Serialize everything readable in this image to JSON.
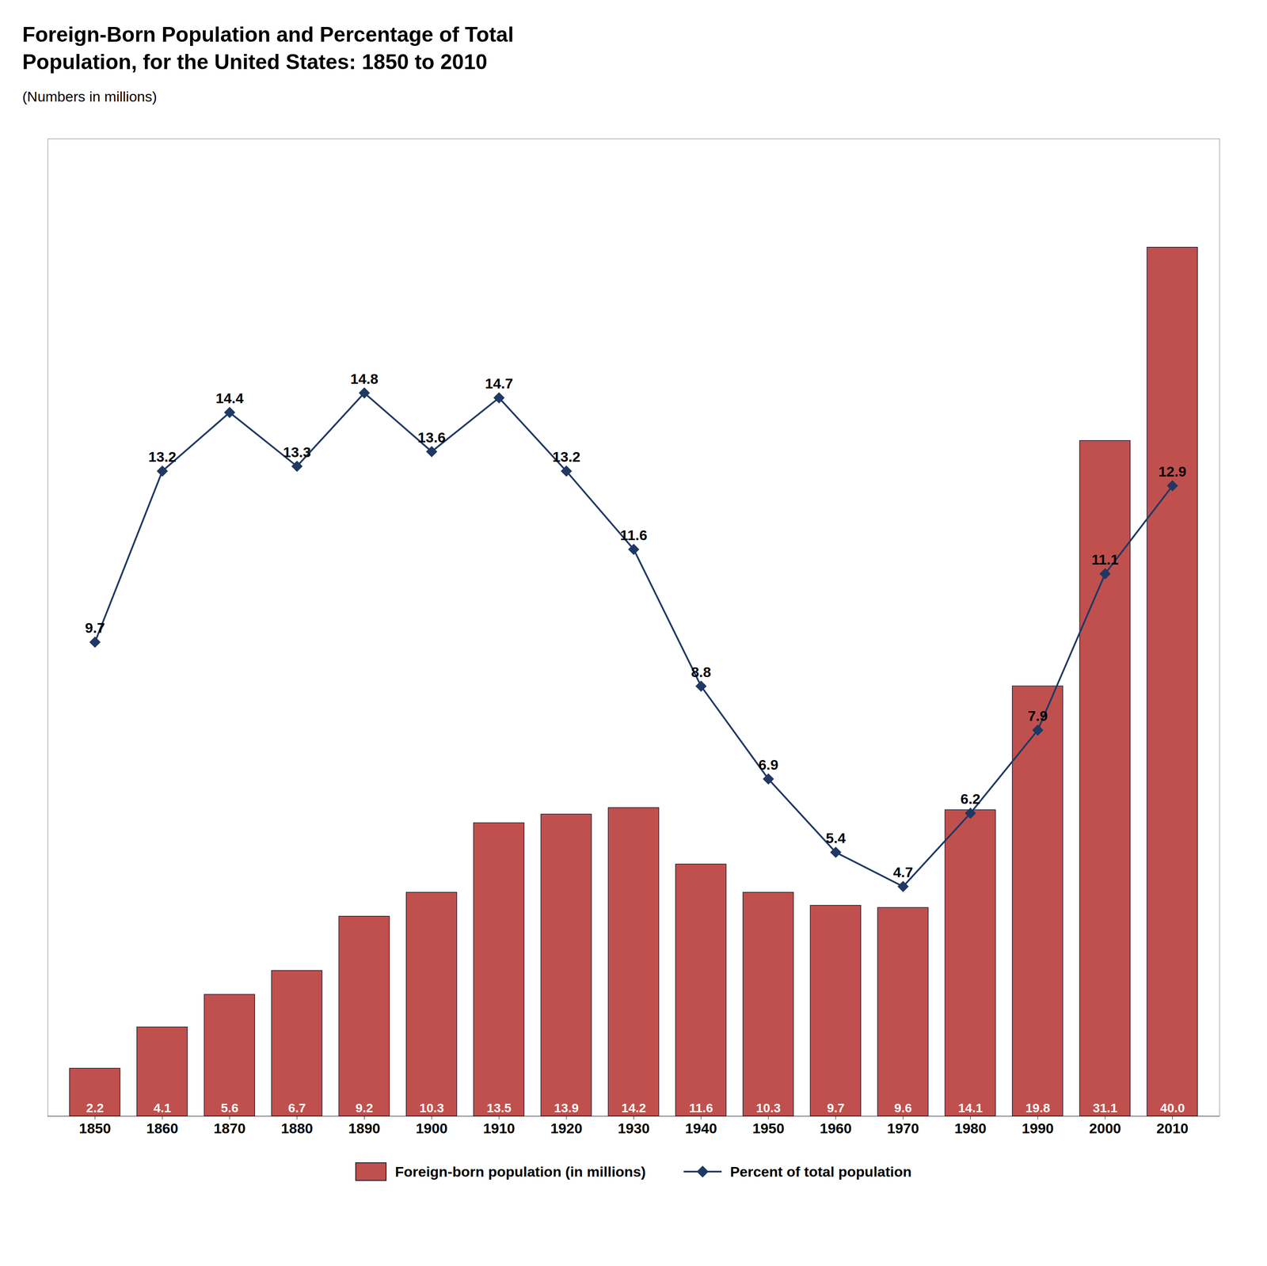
{
  "chart_data": {
    "type": "bar",
    "title": "Foreign-Born Population and Percentage of Total\nPopulation, for the United States: 1850 to 2010",
    "subtitle": "(Numbers in millions)",
    "x": [
      1850,
      1860,
      1870,
      1880,
      1890,
      1900,
      1910,
      1920,
      1930,
      1940,
      1950,
      1960,
      1970,
      1980,
      1990,
      2000,
      2010
    ],
    "xlim": [
      1843,
      2017
    ],
    "xticks": [
      1850,
      1860,
      1870,
      1880,
      1890,
      1900,
      1910,
      1920,
      1930,
      1940,
      1950,
      1960,
      1970,
      1980,
      1990,
      2000,
      2010
    ],
    "ylim": [
      0,
      45
    ],
    "y2lim": [
      0,
      20
    ],
    "tick_labels": "x",
    "data_labels": true,
    "legend": "bottom",
    "series": [
      {
        "name": "Foreign-born population (in millions)",
        "type": "bar",
        "color": "#C0504D",
        "values": [
          2.2,
          4.1,
          5.6,
          6.7,
          9.2,
          10.3,
          13.5,
          13.9,
          14.2,
          11.6,
          10.3,
          9.7,
          9.6,
          14.1,
          19.8,
          31.1,
          40.0
        ],
        "value_labels": [
          "2.2",
          "4.1",
          "5.6",
          "6.7",
          "9.2",
          "10.3",
          "13.5",
          "13.9",
          "14.2",
          "11.6",
          "10.3",
          "9.7",
          "9.6",
          "14.1",
          "19.8",
          "31.1",
          "40.0"
        ]
      },
      {
        "name": "Percent of total population",
        "type": "line",
        "axis": "y2",
        "color": "#1F3864",
        "marker": "diamond",
        "values": [
          9.7,
          13.2,
          14.4,
          13.3,
          14.8,
          13.6,
          14.7,
          13.2,
          11.6,
          8.8,
          6.9,
          5.4,
          4.7,
          6.2,
          7.9,
          11.1,
          12.9
        ]
      }
    ]
  }
}
